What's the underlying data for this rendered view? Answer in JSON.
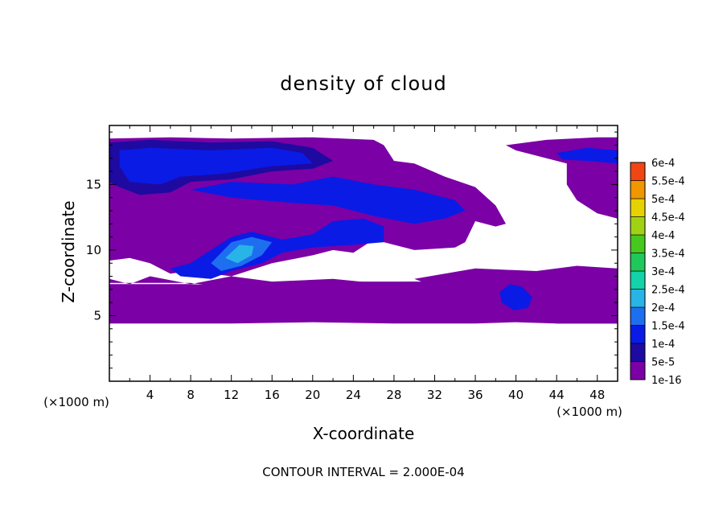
{
  "chart_data": {
    "type": "heatmap",
    "title": "density of cloud",
    "xlabel": "X-coordinate",
    "ylabel": "Z-coordinate",
    "x_unit_left": "(×1000 m)",
    "x_unit_right": "(×1000 m)",
    "xlim": [
      0,
      50
    ],
    "ylim": [
      0,
      19.5
    ],
    "x_ticks": [
      "4",
      "8",
      "12",
      "16",
      "20",
      "24",
      "28",
      "32",
      "36",
      "40",
      "44",
      "48"
    ],
    "y_ticks": [
      "5",
      "10",
      "15"
    ],
    "footer": "CONTOUR INTERVAL = 2.000E-04",
    "colorbar": {
      "labels": [
        "1e-16",
        "5e-5",
        "1e-4",
        "1.5e-4",
        "2e-4",
        "2.5e-4",
        "3e-4",
        "3.5e-4",
        "4e-4",
        "4.5e-4",
        "5e-4",
        "5.5e-4",
        "6e-4"
      ],
      "colors": [
        "#7b00a5",
        "#1e0aa0",
        "#0a1be6",
        "#1e6ef0",
        "#28b4e6",
        "#14d2aa",
        "#1ec85a",
        "#46c81e",
        "#a0d214",
        "#e6d200",
        "#f09600",
        "#f04614",
        "#f56e82"
      ]
    },
    "regions": [
      {
        "level": "1e-16",
        "points": [
          [
            0,
            7.5
          ],
          [
            8,
            7.5
          ],
          [
            14,
            6.8
          ],
          [
            20,
            7.2
          ],
          [
            24,
            6.6
          ],
          [
            30,
            7.2
          ],
          [
            36,
            6.8
          ],
          [
            40,
            5.2
          ],
          [
            44,
            4.4
          ],
          [
            50,
            4.4
          ],
          [
            50,
            7.8
          ],
          [
            46,
            8.2
          ],
          [
            42,
            8.4
          ],
          [
            38,
            7.6
          ],
          [
            34,
            7.4
          ],
          [
            30,
            7.6
          ],
          [
            26,
            7.5
          ],
          [
            22,
            7.8
          ],
          [
            16,
            7.6
          ],
          [
            12,
            8.0
          ],
          [
            8,
            7.4
          ],
          [
            4,
            8.0
          ],
          [
            2,
            7.4
          ],
          [
            0,
            7.8
          ]
        ]
      },
      {
        "level": "1e-16",
        "points": [
          [
            0,
            4.4
          ],
          [
            12,
            4.4
          ],
          [
            20,
            4.5
          ],
          [
            28,
            4.4
          ],
          [
            36,
            4.4
          ],
          [
            40,
            4.5
          ],
          [
            44,
            4.4
          ],
          [
            50,
            4.4
          ],
          [
            50,
            7.4
          ],
          [
            42,
            7.2
          ],
          [
            38,
            7.8
          ],
          [
            34,
            7.6
          ],
          [
            28,
            7.6
          ],
          [
            20,
            7.6
          ],
          [
            14,
            7.2
          ],
          [
            8,
            7.4
          ],
          [
            0,
            7.4
          ]
        ]
      },
      {
        "level": "1e-16",
        "points": [
          [
            0,
            18.5
          ],
          [
            6,
            18.6
          ],
          [
            12,
            18.5
          ],
          [
            20,
            18.6
          ],
          [
            26,
            18.4
          ],
          [
            27,
            18
          ],
          [
            28,
            16.8
          ],
          [
            30,
            16.6
          ],
          [
            33,
            15.6
          ],
          [
            36,
            14.8
          ],
          [
            38,
            13.4
          ],
          [
            39,
            12.0
          ],
          [
            38,
            11.8
          ],
          [
            36,
            12.2
          ],
          [
            35,
            10.6
          ],
          [
            34,
            10.2
          ],
          [
            30,
            10.0
          ],
          [
            26,
            10.8
          ],
          [
            24,
            9.8
          ],
          [
            22,
            10.0
          ],
          [
            20,
            9.6
          ],
          [
            16,
            9.0
          ],
          [
            12,
            8.0
          ],
          [
            8,
            8.4
          ],
          [
            6,
            8.2
          ],
          [
            4,
            9.0
          ],
          [
            2,
            9.4
          ],
          [
            0,
            9.2
          ]
        ]
      },
      {
        "level": "1e-16",
        "points": [
          [
            30,
            7.8
          ],
          [
            36,
            8.6
          ],
          [
            42,
            8.4
          ],
          [
            46,
            8.8
          ],
          [
            50,
            8.6
          ],
          [
            50,
            7.6
          ],
          [
            44,
            7.2
          ],
          [
            38,
            7.4
          ],
          [
            32,
            7.2
          ]
        ]
      },
      {
        "level": "1e-16",
        "points": [
          [
            39,
            18.0
          ],
          [
            43,
            18.4
          ],
          [
            48,
            18.6
          ],
          [
            50,
            18.6
          ],
          [
            50,
            12.4
          ],
          [
            48,
            12.8
          ],
          [
            46,
            13.8
          ],
          [
            45,
            15.0
          ],
          [
            45,
            16.6
          ],
          [
            43,
            17.0
          ],
          [
            40,
            17.6
          ]
        ]
      },
      {
        "level": "5e-5",
        "points": [
          [
            0,
            18.2
          ],
          [
            4,
            18.4
          ],
          [
            10,
            18.2
          ],
          [
            16,
            18.3
          ],
          [
            20,
            17.8
          ],
          [
            22,
            16.8
          ],
          [
            20,
            16.2
          ],
          [
            16,
            16.0
          ],
          [
            12,
            15.4
          ],
          [
            8,
            15.2
          ],
          [
            6,
            14.4
          ],
          [
            3,
            14.2
          ],
          [
            1,
            14.8
          ],
          [
            0,
            15.2
          ]
        ]
      },
      {
        "level": "1e-4",
        "points": [
          [
            1,
            17.6
          ],
          [
            4,
            17.8
          ],
          [
            10,
            17.6
          ],
          [
            16,
            17.8
          ],
          [
            19,
            17.4
          ],
          [
            20,
            16.6
          ],
          [
            16,
            16.4
          ],
          [
            11,
            15.8
          ],
          [
            7,
            15.6
          ],
          [
            5,
            15.0
          ],
          [
            2,
            15.2
          ],
          [
            1,
            16.4
          ]
        ]
      },
      {
        "level": "1e-4",
        "points": [
          [
            8,
            14.6
          ],
          [
            12,
            15.2
          ],
          [
            18,
            15.0
          ],
          [
            22,
            15.6
          ],
          [
            26,
            15.0
          ],
          [
            30,
            14.6
          ],
          [
            34,
            13.8
          ],
          [
            35,
            13.0
          ],
          [
            33,
            12.4
          ],
          [
            30,
            12.0
          ],
          [
            26,
            12.6
          ],
          [
            22,
            13.4
          ],
          [
            18,
            13.6
          ],
          [
            12,
            14.0
          ]
        ]
      },
      {
        "level": "1e-4",
        "points": [
          [
            6,
            8.6
          ],
          [
            8,
            9.0
          ],
          [
            10,
            10.0
          ],
          [
            12,
            11.0
          ],
          [
            14,
            11.4
          ],
          [
            17,
            10.8
          ],
          [
            20,
            11.2
          ],
          [
            22,
            12.2
          ],
          [
            25,
            12.4
          ],
          [
            27,
            11.8
          ],
          [
            27,
            10.6
          ],
          [
            24,
            10.4
          ],
          [
            20,
            10.2
          ],
          [
            17,
            9.8
          ],
          [
            15,
            9.0
          ],
          [
            12,
            8.4
          ],
          [
            10,
            7.8
          ],
          [
            7,
            8.0
          ]
        ]
      },
      {
        "level": "1.5e-4",
        "points": [
          [
            10,
            9.0
          ],
          [
            12,
            10.6
          ],
          [
            14,
            11.0
          ],
          [
            16,
            10.6
          ],
          [
            15,
            9.6
          ],
          [
            13,
            8.8
          ],
          [
            11,
            8.4
          ]
        ]
      },
      {
        "level": "2e-4",
        "points": [
          [
            11.4,
            9.4
          ],
          [
            12.8,
            10.4
          ],
          [
            14.2,
            10.3
          ],
          [
            14.0,
            9.6
          ],
          [
            12.6,
            9.0
          ]
        ]
      },
      {
        "level": "1e-4",
        "points": [
          [
            38.4,
            6.8
          ],
          [
            39.4,
            7.4
          ],
          [
            40.6,
            7.2
          ],
          [
            41.6,
            6.4
          ],
          [
            41.2,
            5.6
          ],
          [
            39.8,
            5.4
          ],
          [
            38.6,
            6.0
          ]
        ]
      },
      {
        "level": "1e-4",
        "points": [
          [
            44,
            17.4
          ],
          [
            47,
            17.8
          ],
          [
            50,
            17.6
          ],
          [
            50,
            16.6
          ],
          [
            47,
            16.8
          ],
          [
            44.6,
            16.9
          ]
        ]
      }
    ]
  }
}
